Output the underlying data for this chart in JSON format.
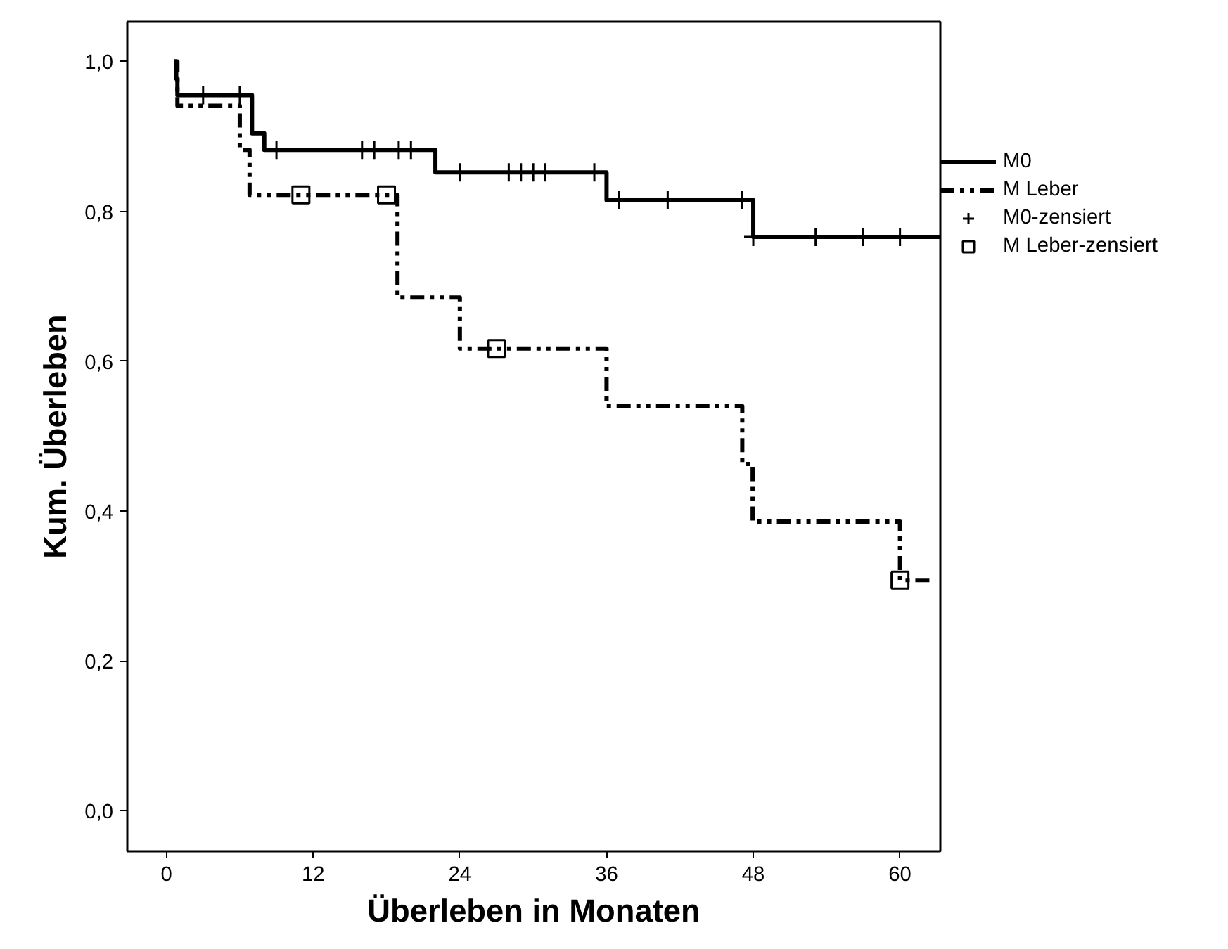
{
  "chart_data": {
    "type": "step",
    "xlabel": "Überleben in Monaten",
    "ylabel": "Kum. Überleben",
    "xlim": [
      -3.2,
      63.3
    ],
    "ylim": [
      -0.054,
      1.053
    ],
    "xticks": [
      0,
      12,
      24,
      36,
      48,
      60
    ],
    "yticks": [
      {
        "value": 0,
        "label": "0,0"
      },
      {
        "value": 0.2,
        "label": "0,2"
      },
      {
        "value": 0.4,
        "label": "0,4"
      },
      {
        "value": 0.6,
        "label": "0,6"
      },
      {
        "value": 0.8,
        "label": "0,8"
      },
      {
        "value": 1.0,
        "label": "1,0"
      }
    ],
    "grid": false,
    "legend": "right",
    "series": [
      {
        "name": "M0",
        "color": "#000000",
        "line_style": "solid",
        "x": [
          0.6,
          0.8,
          0.9,
          7.0,
          8.0,
          22.0,
          36.0,
          48.0,
          63.3
        ],
        "values": [
          1.0,
          0.977,
          0.955,
          0.904,
          0.882,
          0.852,
          0.815,
          0.766,
          0.766
        ]
      },
      {
        "name": "M Leber",
        "color": "#000000",
        "line_style": "dashed",
        "x": [
          0.6,
          0.9,
          6.0,
          6.8,
          18.9,
          24.0,
          36.0,
          47.1,
          47.95,
          60.0,
          62.9
        ],
        "values": [
          1.0,
          0.941,
          0.882,
          0.822,
          0.685,
          0.617,
          0.54,
          0.463,
          0.386,
          0.308,
          0.308
        ]
      },
      {
        "name": "M0-zensiert",
        "type": "scatter",
        "marker": "cross",
        "color": "#000000",
        "x": [
          3,
          6,
          9,
          16,
          17,
          19,
          20,
          24,
          28,
          29,
          30,
          31,
          35,
          37,
          41,
          47.1,
          48,
          53.1,
          57,
          60
        ],
        "values": [
          0.955,
          0.955,
          0.882,
          0.882,
          0.882,
          0.882,
          0.882,
          0.852,
          0.852,
          0.852,
          0.852,
          0.852,
          0.852,
          0.815,
          0.815,
          0.815,
          0.766,
          0.766,
          0.766,
          0.766
        ]
      },
      {
        "name": "M Leber-zensiert",
        "type": "scatter",
        "marker": "square",
        "color": "#000000",
        "x": [
          11,
          18,
          27,
          60
        ],
        "values": [
          0.822,
          0.822,
          0.617,
          0.308
        ]
      }
    ]
  }
}
